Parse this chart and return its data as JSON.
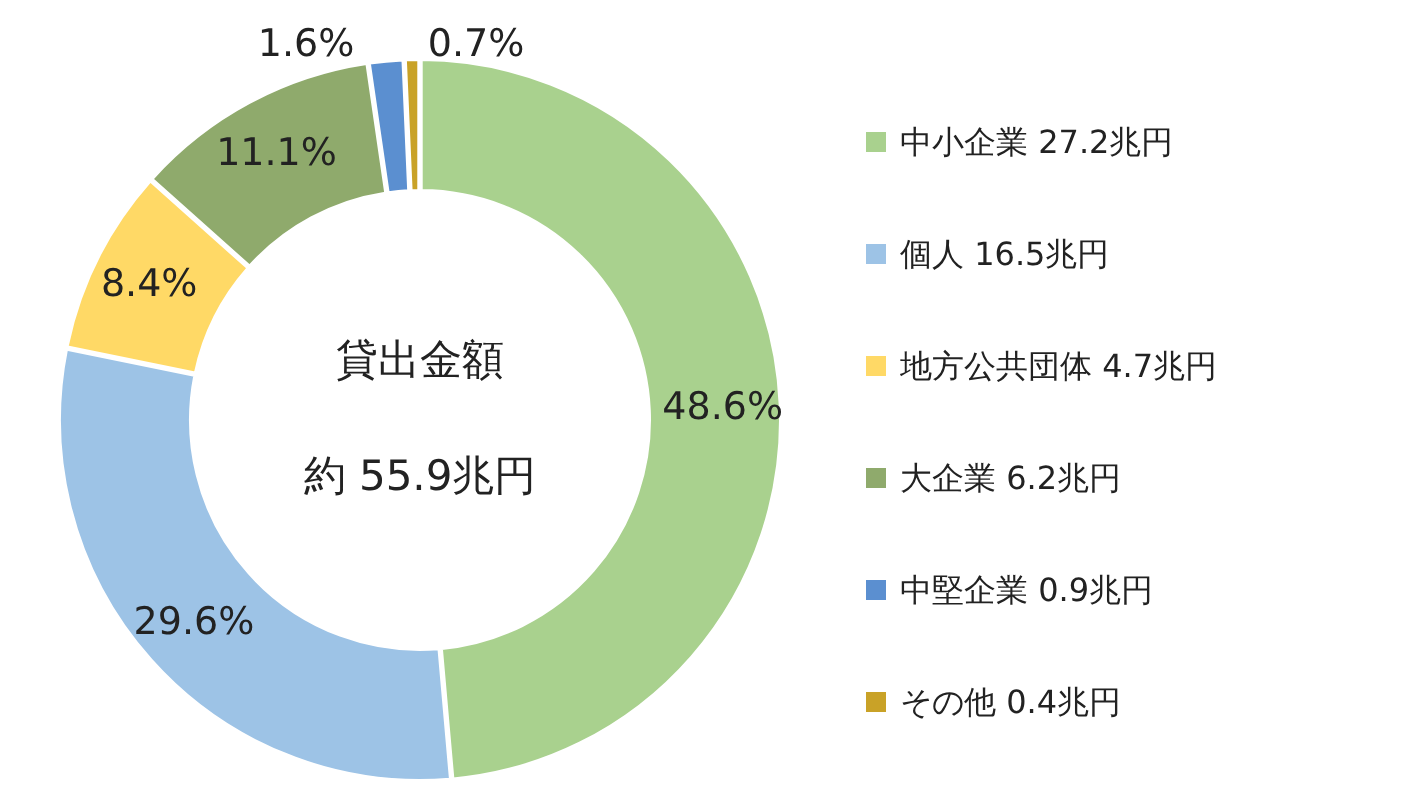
{
  "chart_data": {
    "type": "donut",
    "categories": [
      "中小企業 27.2兆円",
      "個人 16.5兆円",
      "地方公共団体 4.7兆円",
      "大企業 6.2兆円",
      "中堅企業 0.9兆円",
      "その他 0.4兆円"
    ],
    "values": [
      48.6,
      29.6,
      8.4,
      11.1,
      1.6,
      0.7
    ],
    "value_labels": [
      "48.6%",
      "29.6%",
      "8.4%",
      "11.1%",
      "1.6%",
      "0.7%"
    ],
    "colors": [
      "#a9d18e",
      "#9dc3e6",
      "#ffd966",
      "#8faa6c",
      "#5b8fd0",
      "#c9a227"
    ],
    "annotations": [
      "貸出金額",
      "約 55.9兆円"
    ],
    "legend": "right"
  }
}
